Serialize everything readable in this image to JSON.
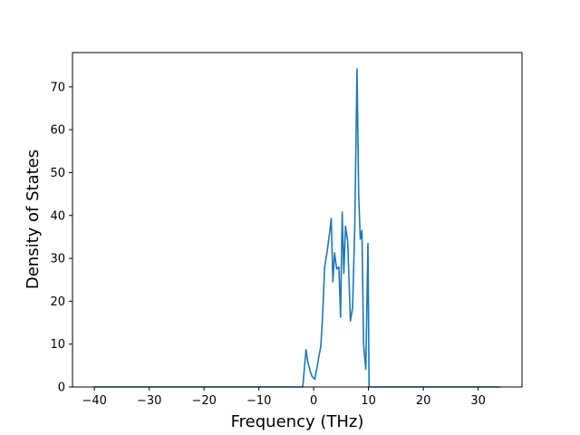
{
  "chart_data": {
    "type": "line",
    "title": "",
    "xlabel": "Frequency (THz)",
    "ylabel": "Density of States",
    "xlim": [
      -44,
      38
    ],
    "ylim": [
      0,
      78
    ],
    "grid": false,
    "x_ticks": [
      -40,
      -30,
      -20,
      -10,
      0,
      10,
      20,
      30
    ],
    "x_tick_labels": [
      "−40",
      "−30",
      "−20",
      "−10",
      "0",
      "10",
      "20",
      "30"
    ],
    "y_ticks": [
      0,
      10,
      20,
      30,
      40,
      50,
      60,
      70
    ],
    "y_tick_labels": [
      "0",
      "10",
      "20",
      "30",
      "40",
      "50",
      "60",
      "70"
    ],
    "series": [
      {
        "color": "#1f77b4",
        "x": [
          -40.2,
          -2.0,
          -1.4,
          -1.1,
          -0.6,
          -0.3,
          0.2,
          0.6,
          1.0,
          1.3,
          1.6,
          2.0,
          2.5,
          3.0,
          3.2,
          3.5,
          3.8,
          4.2,
          4.6,
          4.9,
          5.2,
          5.5,
          5.8,
          6.2,
          6.7,
          7.1,
          7.5,
          7.9,
          8.2,
          8.5,
          8.8,
          9.1,
          9.5,
          9.9,
          10.1,
          10.5,
          34.1
        ],
        "y": [
          0,
          0,
          8.7,
          6.0,
          3.5,
          2.5,
          1.8,
          4.5,
          7.5,
          9.5,
          16.0,
          28.0,
          32.0,
          37.0,
          39.3,
          24.5,
          31.3,
          27.5,
          28.0,
          16.3,
          40.8,
          26.5,
          37.5,
          34.0,
          15.4,
          18.5,
          38.0,
          74.2,
          45.0,
          34.5,
          36.5,
          10.0,
          4.1,
          33.5,
          0,
          0,
          0
        ]
      }
    ]
  }
}
